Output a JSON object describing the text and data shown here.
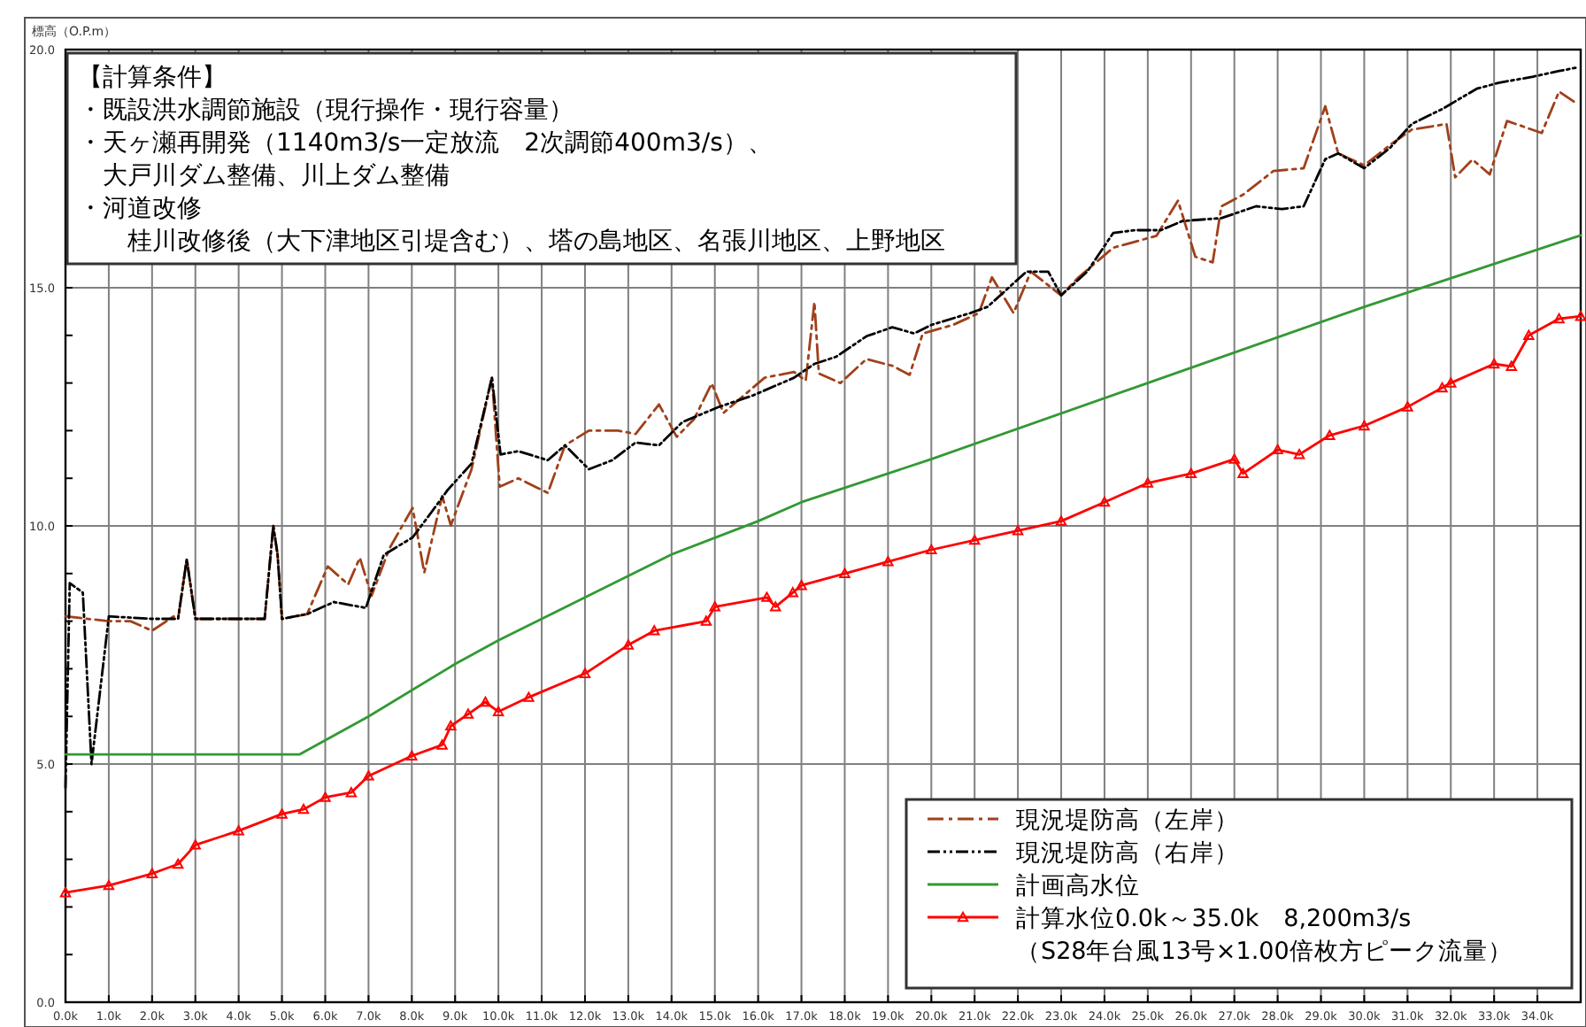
{
  "chart_data": {
    "type": "line",
    "ylabel": "標高（O.P.m）",
    "annotations": [
      "【計算条件】",
      "・既設洪水調節施設（現行操作・現行容量）",
      "・天ヶ瀬再開発（1140m3/s一定放流　2次調節400m3/s）、",
      "　大戸川ダム整備、川上ダム整備",
      "・河道改修",
      "　　桂川改修後（大下津地区引堤含む）、塔の島地区、名張川地区、上野地区"
    ],
    "xlim": [
      0,
      35
    ],
    "ylim": [
      0,
      20
    ],
    "xticks": [
      {
        "value": 0,
        "label": "0.0k"
      },
      {
        "value": 1,
        "label": "1.0k"
      },
      {
        "value": 2,
        "label": "2.0k"
      },
      {
        "value": 3,
        "label": "3.0k"
      },
      {
        "value": 4,
        "label": "4.0k"
      },
      {
        "value": 5,
        "label": "5.0k"
      },
      {
        "value": 6,
        "label": "6.0k"
      },
      {
        "value": 7,
        "label": "7.0k"
      },
      {
        "value": 8,
        "label": "8.0k"
      },
      {
        "value": 9,
        "label": "9.0k"
      },
      {
        "value": 10,
        "label": "10.0k"
      },
      {
        "value": 11,
        "label": "11.0k"
      },
      {
        "value": 12,
        "label": "12.0k"
      },
      {
        "value": 13,
        "label": "13.0k"
      },
      {
        "value": 14,
        "label": "14.0k"
      },
      {
        "value": 15,
        "label": "15.0k"
      },
      {
        "value": 16,
        "label": "16.0k"
      },
      {
        "value": 17,
        "label": "17.0k"
      },
      {
        "value": 18,
        "label": "18.0k"
      },
      {
        "value": 19,
        "label": "19.0k"
      },
      {
        "value": 20,
        "label": "20.0k"
      },
      {
        "value": 21,
        "label": "21.0k"
      },
      {
        "value": 22,
        "label": "22.0k"
      },
      {
        "value": 23,
        "label": "23.0k"
      },
      {
        "value": 24,
        "label": "24.0k"
      },
      {
        "value": 25,
        "label": "25.0k"
      },
      {
        "value": 26,
        "label": "26.0k"
      },
      {
        "value": 27,
        "label": "27.0k"
      },
      {
        "value": 28,
        "label": "28.0k"
      },
      {
        "value": 29,
        "label": "29.0k"
      },
      {
        "value": 30,
        "label": "30.0k"
      },
      {
        "value": 31,
        "label": "31.0k"
      },
      {
        "value": 32,
        "label": "32.0k"
      },
      {
        "value": 33,
        "label": "33.0k"
      },
      {
        "value": 34,
        "label": "34.0k"
      }
    ],
    "yticks": [
      {
        "value": 0,
        "label": "0.0"
      },
      {
        "value": 1,
        "label": null
      },
      {
        "value": 2,
        "label": null
      },
      {
        "value": 3,
        "label": null
      },
      {
        "value": 4,
        "label": null
      },
      {
        "value": 5,
        "label": "5.0"
      },
      {
        "value": 6,
        "label": null
      },
      {
        "value": 7,
        "label": null
      },
      {
        "value": 8,
        "label": null
      },
      {
        "value": 9,
        "label": null
      },
      {
        "value": 10,
        "label": "10.0"
      },
      {
        "value": 11,
        "label": null
      },
      {
        "value": 12,
        "label": null
      },
      {
        "value": 13,
        "label": null
      },
      {
        "value": 14,
        "label": null
      },
      {
        "value": 15,
        "label": "15.0"
      },
      {
        "value": 16,
        "label": null
      },
      {
        "value": 17,
        "label": null
      },
      {
        "value": 18,
        "label": null
      },
      {
        "value": 19,
        "label": null
      },
      {
        "value": 20,
        "label": "20.0"
      }
    ],
    "grid": true,
    "legend": "bottom right",
    "series": [
      {
        "name": "現況堤防高（左岸）",
        "color": "#a0401a",
        "line_style": "dashed",
        "marker": "none",
        "x": [
          0,
          1,
          1.5,
          2,
          2.5,
          2.6,
          2.8,
          3,
          4,
          4.6,
          4.8,
          4.9,
          5,
          5.58,
          6.06,
          6.53,
          6.8,
          7.07,
          7.48,
          8.02,
          8.29,
          8.7,
          8.9,
          9.38,
          9.85,
          10.03,
          10.46,
          11.14,
          11.54,
          12.09,
          12.76,
          13.17,
          13.71,
          14.12,
          14.52,
          14.93,
          15.2,
          16.15,
          16.83,
          17.1,
          17.3,
          17.4,
          17.9,
          18.5,
          19.1,
          19.5,
          19.8,
          20.5,
          21.1,
          21.4,
          21.9,
          22.3,
          23,
          23.4,
          24.2,
          25.2,
          25.7,
          26.1,
          26.5,
          26.7,
          27.2,
          27.9,
          28.6,
          29.1,
          29.4,
          30,
          30.6,
          31.1,
          31.9,
          32.1,
          32.5,
          32.9,
          33.3,
          34.1,
          34.5,
          34.9
        ],
        "values": [
          8.1,
          8,
          8,
          7.8,
          8.1,
          8.05,
          9.3,
          8.05,
          8.05,
          8.05,
          10,
          9.4,
          8.05,
          8.15,
          9.15,
          8.77,
          9.33,
          8.53,
          9.52,
          10.38,
          9.02,
          10.63,
          10.01,
          11.19,
          13.11,
          10.82,
          11,
          10.69,
          11.69,
          12,
          12,
          11.93,
          12.55,
          11.87,
          12.24,
          12.99,
          12.37,
          13.11,
          13.23,
          13.05,
          14.7,
          13.2,
          13,
          13.5,
          13.36,
          13.17,
          14.04,
          14.22,
          14.47,
          15.22,
          14.47,
          15.34,
          14.84,
          15.22,
          15.84,
          16.09,
          16.83,
          15.65,
          15.53,
          16.71,
          16.95,
          17.45,
          17.51,
          18.81,
          17.82,
          17.57,
          18,
          18.32,
          18.44,
          17.32,
          17.69,
          17.38,
          18.5,
          18.25,
          19.12,
          18.87
        ]
      },
      {
        "name": "現況堤防高（右岸）",
        "color": "#000000",
        "line_style": "dotted",
        "marker": "none",
        "x": [
          0,
          0.1,
          0.4,
          0.6,
          1,
          2,
          2.6,
          2.8,
          3,
          4.6,
          4.8,
          4.9,
          5,
          5.58,
          6.2,
          6.94,
          7.35,
          8.02,
          8.43,
          8.83,
          9.38,
          9.85,
          10.05,
          10.46,
          11.14,
          11.54,
          12.09,
          12.63,
          13.17,
          13.71,
          14.25,
          15.07,
          15.88,
          16.83,
          17.3,
          17.8,
          18.5,
          19.1,
          19.6,
          20,
          20.9,
          21.3,
          22.2,
          22.7,
          23,
          23.6,
          24.2,
          24.7,
          25.3,
          25.8,
          26.7,
          27.5,
          28.1,
          28.6,
          29.1,
          29.4,
          30,
          30.6,
          31.1,
          31.8,
          32.6,
          33.1,
          33.9,
          34.5,
          34.9
        ],
        "values": [
          4.5,
          8.8,
          8.6,
          5,
          8.1,
          8.05,
          8.05,
          9.3,
          8.05,
          8.05,
          10,
          9.4,
          8.05,
          8.15,
          8.4,
          8.28,
          9.39,
          9.76,
          10.26,
          10.76,
          11.31,
          13.11,
          11.5,
          11.57,
          11.38,
          11.69,
          11.19,
          11.38,
          11.75,
          11.69,
          12.18,
          12.49,
          12.74,
          13.11,
          13.4,
          13.55,
          13.98,
          14.17,
          14.04,
          14.22,
          14.47,
          14.6,
          15.34,
          15.34,
          14.84,
          15.34,
          16.15,
          16.21,
          16.21,
          16.4,
          16.46,
          16.71,
          16.65,
          16.71,
          17.7,
          17.82,
          17.51,
          17.94,
          18.44,
          18.75,
          19.18,
          19.3,
          19.43,
          19.55,
          19.62
        ]
      },
      {
        "name": "計画高水位",
        "color": "#339933",
        "line_style": "solid",
        "marker": "none",
        "x": [
          0,
          5.4,
          7,
          9,
          10,
          12,
          14,
          16,
          17,
          20,
          25,
          30,
          35
        ],
        "values": [
          5.2,
          5.2,
          6,
          7.1,
          7.6,
          8.5,
          9.4,
          10.1,
          10.5,
          11.4,
          13,
          14.6,
          16.1
        ]
      },
      {
        "name": "計算水位0.0k～35.0k　8,200m3/s\n（S28年台風13号×1.00倍枚方ピーク流量）",
        "color": "#ff0000",
        "line_style": "solid",
        "marker": "triangle",
        "x": [
          0,
          1,
          2,
          2.6,
          3,
          4,
          5,
          5.5,
          6,
          6.6,
          7,
          8,
          8.7,
          8.9,
          9.3,
          9.7,
          10,
          10.7,
          12,
          13,
          13.6,
          14.8,
          15,
          16.2,
          16.4,
          16.8,
          17,
          18,
          19,
          20,
          21,
          22,
          23,
          24,
          25,
          26,
          27,
          27.2,
          28,
          28.5,
          29.2,
          30,
          31,
          31.8,
          32,
          33,
          33.4,
          33.8,
          34.5,
          35
        ],
        "values": [
          2.3,
          2.45,
          2.7,
          2.9,
          3.3,
          3.6,
          3.95,
          4.05,
          4.3,
          4.4,
          4.75,
          5.17,
          5.4,
          5.8,
          6.05,
          6.3,
          6.1,
          6.4,
          6.9,
          7.5,
          7.8,
          8,
          8.3,
          8.5,
          8.3,
          8.6,
          8.75,
          9,
          9.25,
          9.5,
          9.7,
          9.9,
          10.1,
          10.5,
          10.9,
          11.1,
          11.4,
          11.1,
          11.6,
          11.5,
          11.9,
          12.1,
          12.5,
          12.9,
          13,
          13.4,
          13.35,
          14,
          14.35,
          14.4
        ]
      }
    ]
  }
}
